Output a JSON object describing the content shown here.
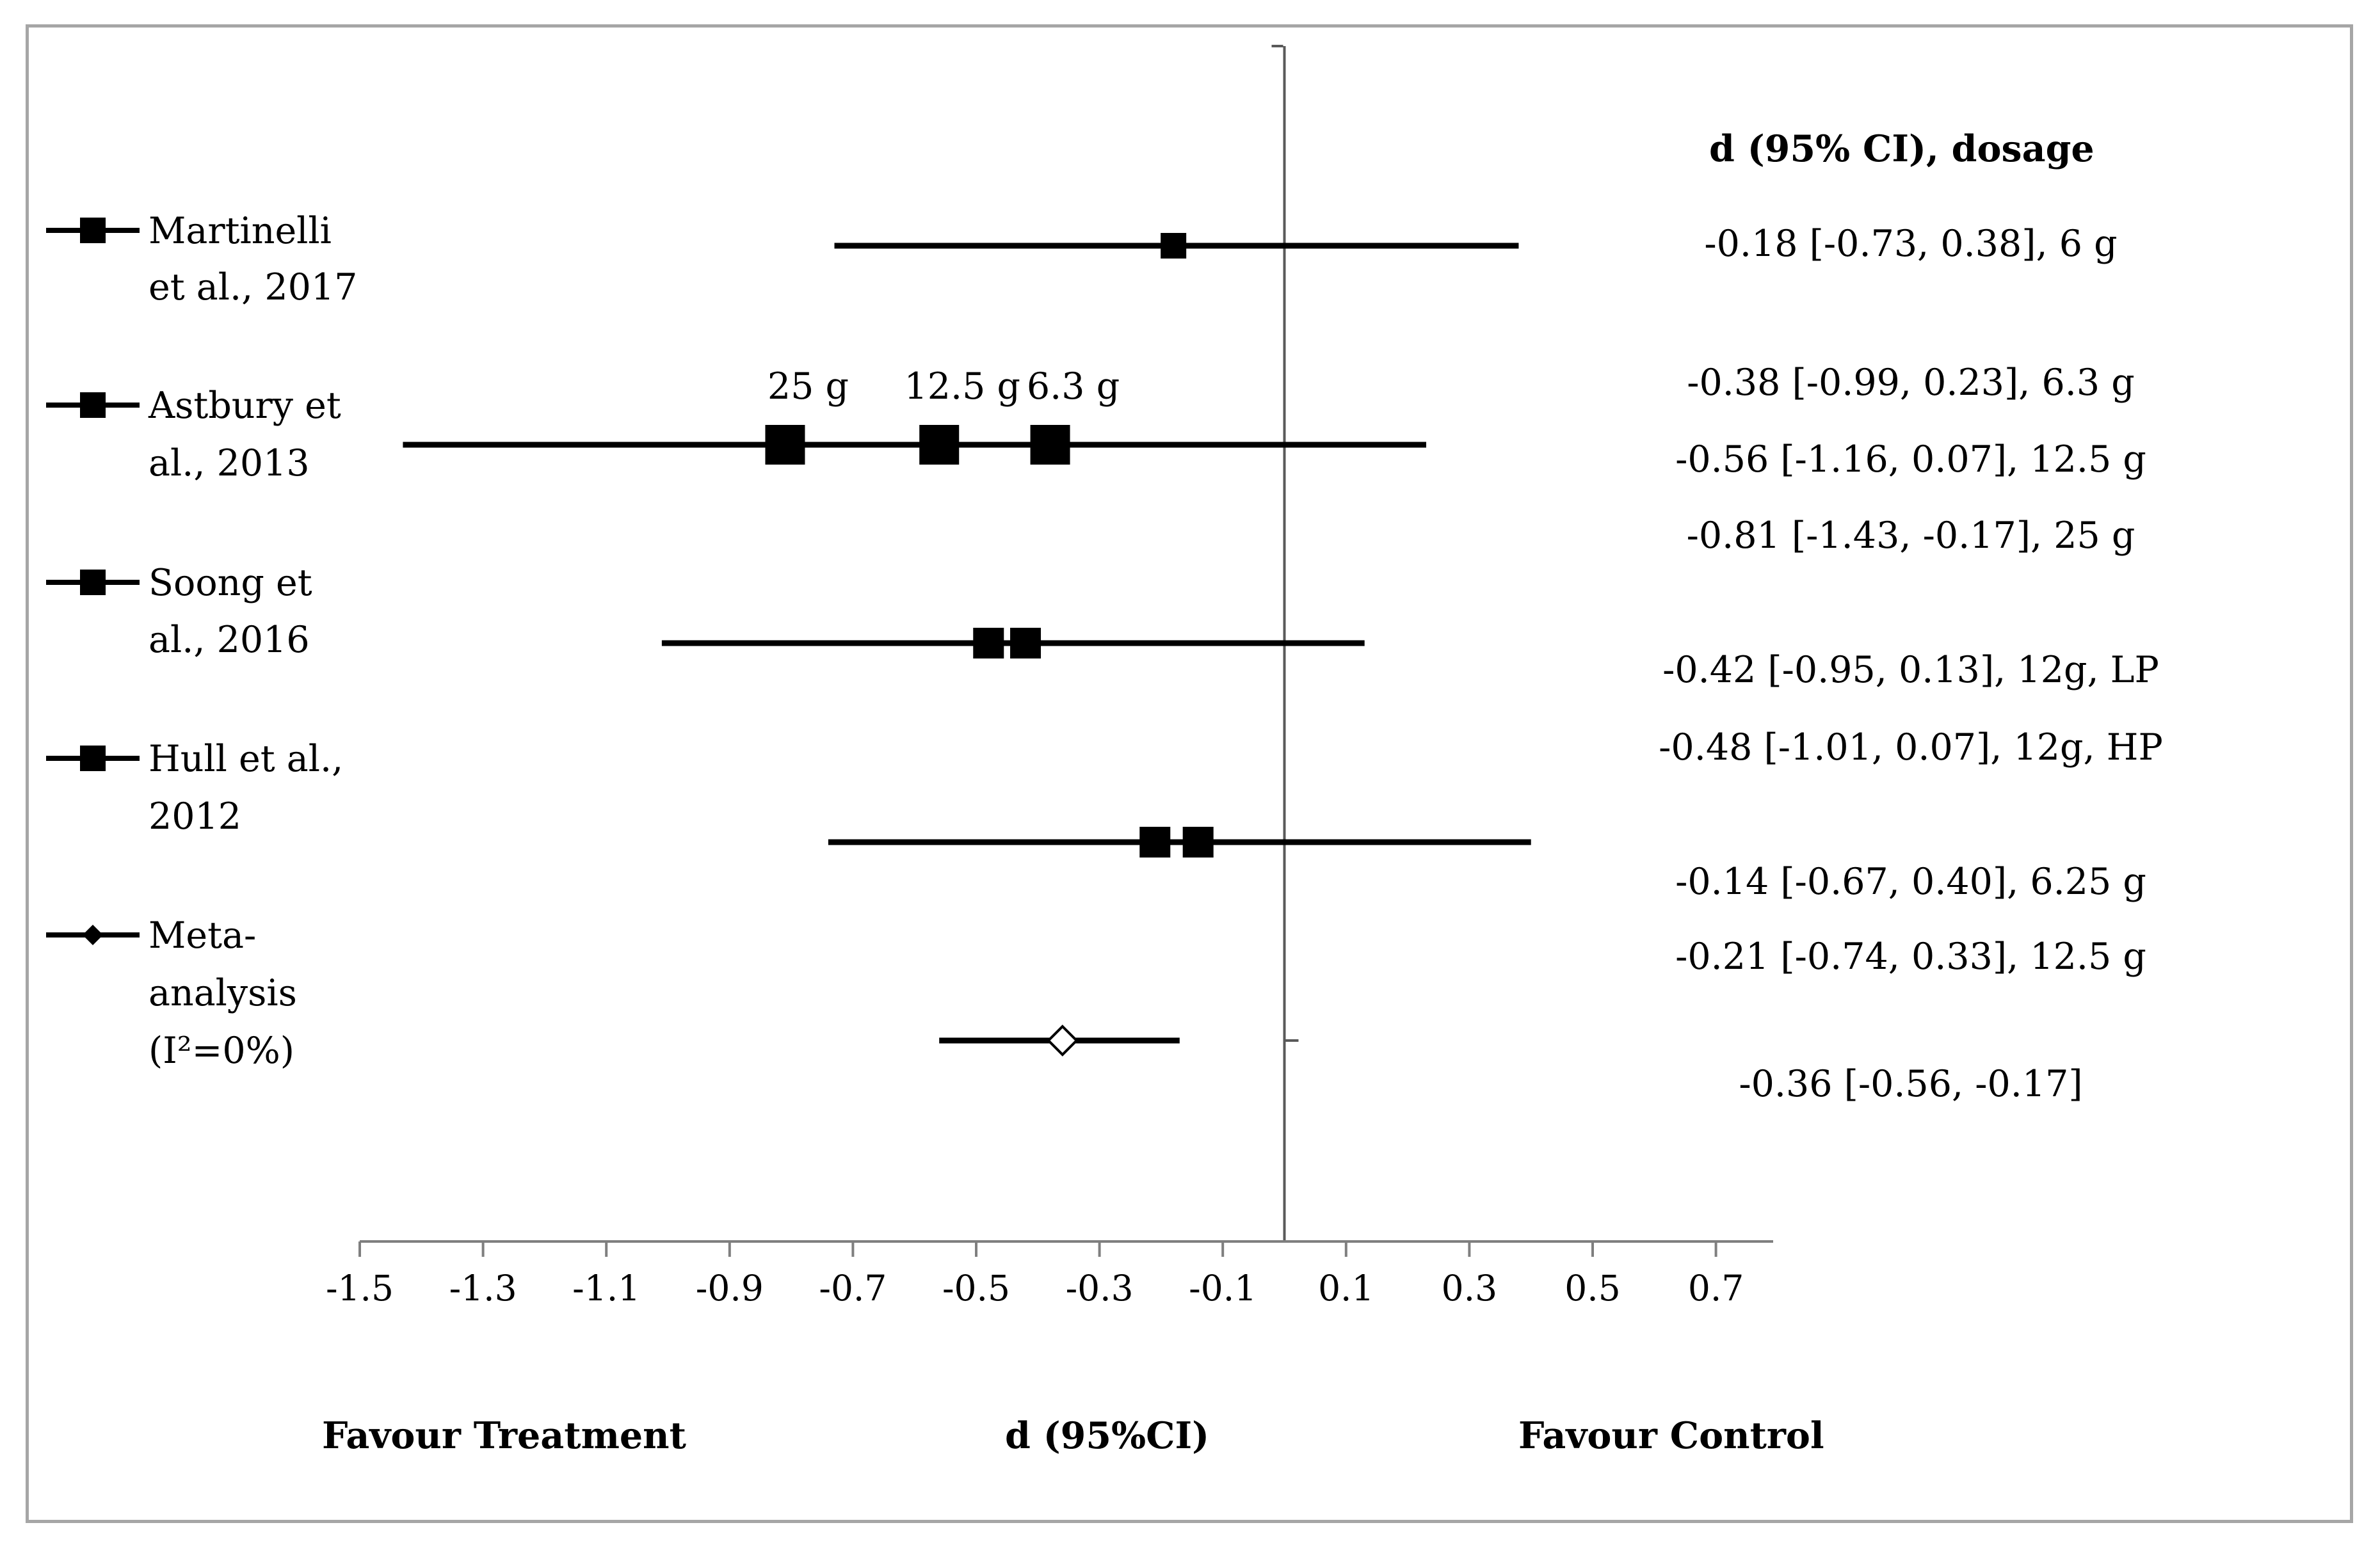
{
  "chart_data": {
    "type": "forest",
    "x_axis": {
      "title": "d (95%CI)",
      "left_label": "Favour Treatment",
      "right_label": "Favour Control",
      "ticks": [
        -1.5,
        -1.3,
        -1.1,
        -0.9,
        -0.7,
        -0.5,
        -0.3,
        -0.1,
        0.1,
        0.3,
        0.5,
        0.7
      ],
      "tick_labels": [
        "-1.5",
        "-1.3",
        "-1.1",
        "-0.9",
        "-0.7",
        "-0.5",
        "-0.3",
        "-0.1",
        "0.1",
        "0.3",
        "0.5",
        "0.7"
      ],
      "xlim": [
        -1.5,
        0.8
      ],
      "null_line": 0
    },
    "ci_column_header": "d (95% CI), dosage",
    "studies": [
      {
        "label_lines": [
          "Martinelli",
          "et al., 2017"
        ],
        "marker": "square",
        "ci": [
          -0.73,
          0.38
        ],
        "points": [
          -0.18
        ],
        "dose_labels": [],
        "ci_texts": [
          "-0.18 [-0.73, 0.38], 6 g"
        ]
      },
      {
        "label_lines": [
          "Astbury et",
          "al., 2013"
        ],
        "marker": "square",
        "ci": [
          -1.43,
          0.23
        ],
        "points": [
          -0.81,
          -0.56,
          -0.38
        ],
        "dose_labels": [
          "25 g",
          "12.5 g",
          "6.3 g"
        ],
        "ci_texts": [
          "-0.38 [-0.99, 0.23], 6.3 g",
          "-0.56 [-1.16, 0.07], 12.5 g",
          "-0.81 [-1.43, -0.17], 25 g"
        ]
      },
      {
        "label_lines": [
          "Soong et",
          "al., 2016"
        ],
        "marker": "square",
        "ci": [
          -1.01,
          0.13
        ],
        "points": [
          -0.48,
          -0.42
        ],
        "dose_labels": [],
        "ci_texts": [
          "-0.42 [-0.95, 0.13], 12g, LP",
          "-0.48 [-1.01, 0.07], 12g, HP"
        ]
      },
      {
        "label_lines": [
          "Hull et al.,",
          "2012"
        ],
        "marker": "square",
        "ci": [
          -0.74,
          0.4
        ],
        "points": [
          -0.21,
          -0.14
        ],
        "dose_labels": [],
        "ci_texts": [
          "-0.14 [-0.67, 0.40], 6.25 g",
          "-0.21 [-0.74, 0.33], 12.5 g"
        ]
      },
      {
        "label_lines": [
          "Meta-",
          "analysis",
          "(I²=0%)"
        ],
        "marker": "diamond",
        "ci": [
          -0.56,
          -0.17
        ],
        "points": [
          -0.36
        ],
        "dose_labels": [],
        "ci_texts": [
          "-0.36 [-0.56, -0.17]"
        ]
      }
    ]
  }
}
